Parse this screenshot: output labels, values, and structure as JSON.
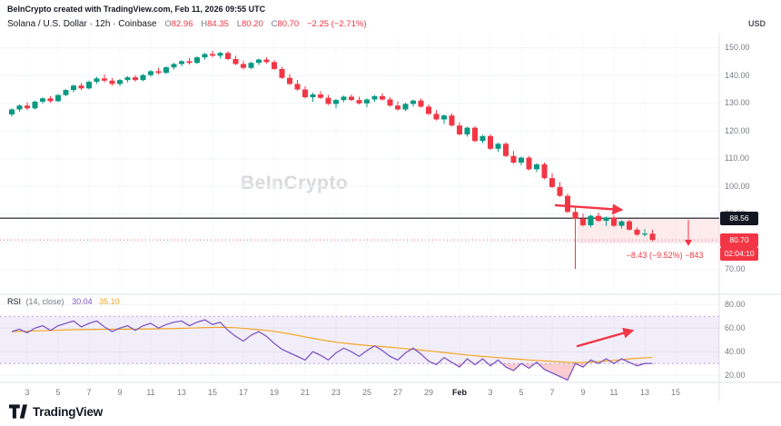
{
  "meta": {
    "attribution": "BeInCrypto created with TradingView.com, Feb 11, 2026 09:55 UTC",
    "watermark": "BeInCrypto",
    "logo_text": "TradingView"
  },
  "legend": {
    "symbol_title": "Solana / U.S. Dollar · 12h · Coinbase",
    "open_label": "O",
    "open": "82.96",
    "high_label": "H",
    "high": "84.35",
    "low_label": "L",
    "low": "80.20",
    "close_label": "C",
    "close": "80.70",
    "change": "−2.25 (−2.71%)"
  },
  "axis": {
    "currency": "USD",
    "price_tag_main": "88.56",
    "price_tag_last": "80.70",
    "countdown": "02:04:10"
  },
  "rsi_legend": {
    "name": "RSI",
    "params": "(14, close)",
    "value": "30.04",
    "ma_value": "35.10"
  },
  "annotations": {
    "measure_text": "−8.43 (−9.52%) −843"
  },
  "colors": {
    "up": "#089981",
    "down": "#F23645",
    "rsi": "#7E57C2",
    "rsi_ma": "#F5A623",
    "support_line": "#131722",
    "zone_fill": "rgba(242,54,69,0.10)",
    "oversold_fill": "rgba(242,54,69,0.25)",
    "band_fill": "rgba(126,87,194,0.10)",
    "grid": "#F0F3FA",
    "separator": "#E0E3EB",
    "tick_text": "#787B86"
  },
  "time_labels": [
    "3",
    "5",
    "7",
    "9",
    "11",
    "13",
    "15",
    "17",
    "19",
    "21",
    "23",
    "25",
    "27",
    "29",
    "Feb",
    "3",
    "5",
    "7",
    "9",
    "11",
    "13",
    "15"
  ],
  "chart_data": [
    {
      "type": "candlestick",
      "title": "Solana / U.S. Dollar · 12h · Coinbase",
      "ylabel": "USD",
      "ylim": [
        62,
        156
      ],
      "price_ticks": [
        150,
        140,
        130,
        120,
        110,
        100,
        90,
        80,
        70
      ],
      "support_level": 88.56,
      "last_price": 80.7,
      "measured_move": {
        "change": -8.43,
        "change_pct": -9.52,
        "points": -843
      },
      "candles_ohlc": [
        [
          126.0,
          128.3,
          125.2,
          127.8
        ],
        [
          127.8,
          129.6,
          127.0,
          129.2
        ],
        [
          129.2,
          130.4,
          127.6,
          128.2
        ],
        [
          128.2,
          131.0,
          127.8,
          130.6
        ],
        [
          130.6,
          132.2,
          129.8,
          131.8
        ],
        [
          131.8,
          132.6,
          130.2,
          130.8
        ],
        [
          130.8,
          133.4,
          130.4,
          133.0
        ],
        [
          133.0,
          135.2,
          132.6,
          134.8
        ],
        [
          134.8,
          136.8,
          134.0,
          136.4
        ],
        [
          136.4,
          137.4,
          134.8,
          135.4
        ],
        [
          135.4,
          138.2,
          135.0,
          137.8
        ],
        [
          137.8,
          139.6,
          137.0,
          139.0
        ],
        [
          139.0,
          140.4,
          137.6,
          138.2
        ],
        [
          138.2,
          139.2,
          136.4,
          137.0
        ],
        [
          137.0,
          138.8,
          136.2,
          138.4
        ],
        [
          138.4,
          139.8,
          137.6,
          139.4
        ],
        [
          139.4,
          140.2,
          137.8,
          138.4
        ],
        [
          138.4,
          140.6,
          138.0,
          140.2
        ],
        [
          140.2,
          142.0,
          139.6,
          141.6
        ],
        [
          141.6,
          142.8,
          140.4,
          141.0
        ],
        [
          141.0,
          143.4,
          140.6,
          143.0
        ],
        [
          143.0,
          144.6,
          142.2,
          144.2
        ],
        [
          144.2,
          145.6,
          143.4,
          145.2
        ],
        [
          145.2,
          146.4,
          144.0,
          144.6
        ],
        [
          144.6,
          147.0,
          144.2,
          146.6
        ],
        [
          146.6,
          148.2,
          145.8,
          147.8
        ],
        [
          147.8,
          149.0,
          146.6,
          147.2
        ],
        [
          147.2,
          148.6,
          146.2,
          148.2
        ],
        [
          148.2,
          148.8,
          145.6,
          146.0
        ],
        [
          146.0,
          147.2,
          143.8,
          144.2
        ],
        [
          144.2,
          145.4,
          142.2,
          142.8
        ],
        [
          142.8,
          145.0,
          142.4,
          144.6
        ],
        [
          144.6,
          146.2,
          143.8,
          145.8
        ],
        [
          145.8,
          146.6,
          144.4,
          144.9
        ],
        [
          144.9,
          145.6,
          142.0,
          142.4
        ],
        [
          142.4,
          143.2,
          138.8,
          139.2
        ],
        [
          139.2,
          140.6,
          136.6,
          137.0
        ],
        [
          137.0,
          138.4,
          134.6,
          135.0
        ],
        [
          135.0,
          136.2,
          131.8,
          132.2
        ],
        [
          132.2,
          133.8,
          130.6,
          133.2
        ],
        [
          133.2,
          134.4,
          131.6,
          132.0
        ],
        [
          132.0,
          133.0,
          129.4,
          129.8
        ],
        [
          129.8,
          131.6,
          128.2,
          131.2
        ],
        [
          131.2,
          132.8,
          130.4,
          132.4
        ],
        [
          132.4,
          133.2,
          130.8,
          131.2
        ],
        [
          131.2,
          132.4,
          129.6,
          130.0
        ],
        [
          130.0,
          131.8,
          128.6,
          131.4
        ],
        [
          131.4,
          133.0,
          130.6,
          132.6
        ],
        [
          132.6,
          133.6,
          131.0,
          131.4
        ],
        [
          131.4,
          132.2,
          128.8,
          129.2
        ],
        [
          129.2,
          130.8,
          127.4,
          127.8
        ],
        [
          127.8,
          130.2,
          127.2,
          129.8
        ],
        [
          129.8,
          131.4,
          128.8,
          131.0
        ],
        [
          131.0,
          131.8,
          128.4,
          128.8
        ],
        [
          128.8,
          129.6,
          125.8,
          126.2
        ],
        [
          126.2,
          127.6,
          123.8,
          124.2
        ],
        [
          124.2,
          126.0,
          122.6,
          125.6
        ],
        [
          125.6,
          126.4,
          121.6,
          122.0
        ],
        [
          122.0,
          123.2,
          118.4,
          118.8
        ],
        [
          118.8,
          121.6,
          118.0,
          121.2
        ],
        [
          121.2,
          121.8,
          116.0,
          116.4
        ],
        [
          116.4,
          118.6,
          115.6,
          118.2
        ],
        [
          118.2,
          118.8,
          113.2,
          113.6
        ],
        [
          113.6,
          115.8,
          112.6,
          115.4
        ],
        [
          115.4,
          116.0,
          110.6,
          111.0
        ],
        [
          111.0,
          112.8,
          108.2,
          108.6
        ],
        [
          108.6,
          110.8,
          107.6,
          110.4
        ],
        [
          110.4,
          111.0,
          105.8,
          106.2
        ],
        [
          106.2,
          108.4,
          105.2,
          108.0
        ],
        [
          108.0,
          108.6,
          102.6,
          103.0
        ],
        [
          103.0,
          104.8,
          99.4,
          99.8
        ],
        [
          99.8,
          101.6,
          96.2,
          96.6
        ],
        [
          96.6,
          97.4,
          90.4,
          90.8
        ],
        [
          90.8,
          92.6,
          70.2,
          88.4
        ],
        [
          88.4,
          90.2,
          85.6,
          86.0
        ],
        [
          86.0,
          89.8,
          85.2,
          89.4
        ],
        [
          89.4,
          90.6,
          87.2,
          87.6
        ],
        [
          87.6,
          89.2,
          85.8,
          88.8
        ],
        [
          88.8,
          89.6,
          85.4,
          85.8
        ],
        [
          85.8,
          87.8,
          84.8,
          87.4
        ],
        [
          87.4,
          88.0,
          84.0,
          84.4
        ],
        [
          84.4,
          85.2,
          82.2,
          82.6
        ],
        [
          82.6,
          84.6,
          81.9,
          83.0
        ],
        [
          82.96,
          84.35,
          80.2,
          80.7
        ]
      ]
    },
    {
      "type": "line",
      "title": "RSI (14, close)",
      "ylim": [
        16,
        86
      ],
      "yticks": [
        80,
        60,
        40,
        20
      ],
      "overbought": 70,
      "oversold": 30,
      "series": [
        {
          "name": "RSI",
          "values": [
            57,
            59,
            56,
            60,
            62,
            58,
            62,
            64,
            66,
            61,
            64,
            66,
            61,
            57,
            60,
            62,
            58,
            62,
            64,
            60,
            63,
            65,
            66,
            62,
            65,
            67,
            63,
            65,
            58,
            53,
            49,
            54,
            57,
            53,
            47,
            42,
            39,
            36,
            33,
            40,
            37,
            33,
            39,
            43,
            40,
            36,
            41,
            45,
            41,
            36,
            33,
            39,
            43,
            38,
            32,
            29,
            35,
            31,
            27,
            34,
            29,
            34,
            28,
            33,
            27,
            24,
            30,
            26,
            31,
            25,
            22,
            19,
            16,
            30,
            27,
            33,
            30,
            34,
            30,
            34,
            31,
            28,
            30,
            30.04
          ]
        },
        {
          "name": "RSI-based MA",
          "values": [
            57.0,
            57.2,
            57.4,
            57.6,
            57.8,
            58.0,
            58.2,
            58.4,
            58.6,
            58.7,
            58.8,
            58.9,
            59.0,
            59.0,
            59.0,
            59.1,
            59.1,
            59.2,
            59.3,
            59.4,
            59.5,
            59.6,
            59.8,
            60.0,
            60.2,
            60.4,
            60.6,
            60.7,
            60.6,
            60.3,
            59.8,
            59.2,
            58.6,
            58.0,
            57.2,
            56.2,
            55.0,
            53.8,
            52.5,
            51.3,
            50.2,
            49.1,
            48.1,
            47.3,
            46.6,
            45.9,
            45.3,
            44.8,
            44.3,
            43.8,
            43.2,
            42.6,
            42.0,
            41.4,
            40.7,
            40.0,
            39.3,
            38.6,
            37.9,
            37.2,
            36.6,
            36.0,
            35.5,
            35.0,
            34.5,
            34.0,
            33.5,
            33.0,
            32.6,
            32.2,
            31.8,
            31.4,
            31.0,
            30.8,
            30.9,
            31.2,
            31.6,
            32.1,
            32.7,
            33.3,
            33.9,
            34.4,
            34.8,
            35.1
          ]
        }
      ]
    }
  ]
}
